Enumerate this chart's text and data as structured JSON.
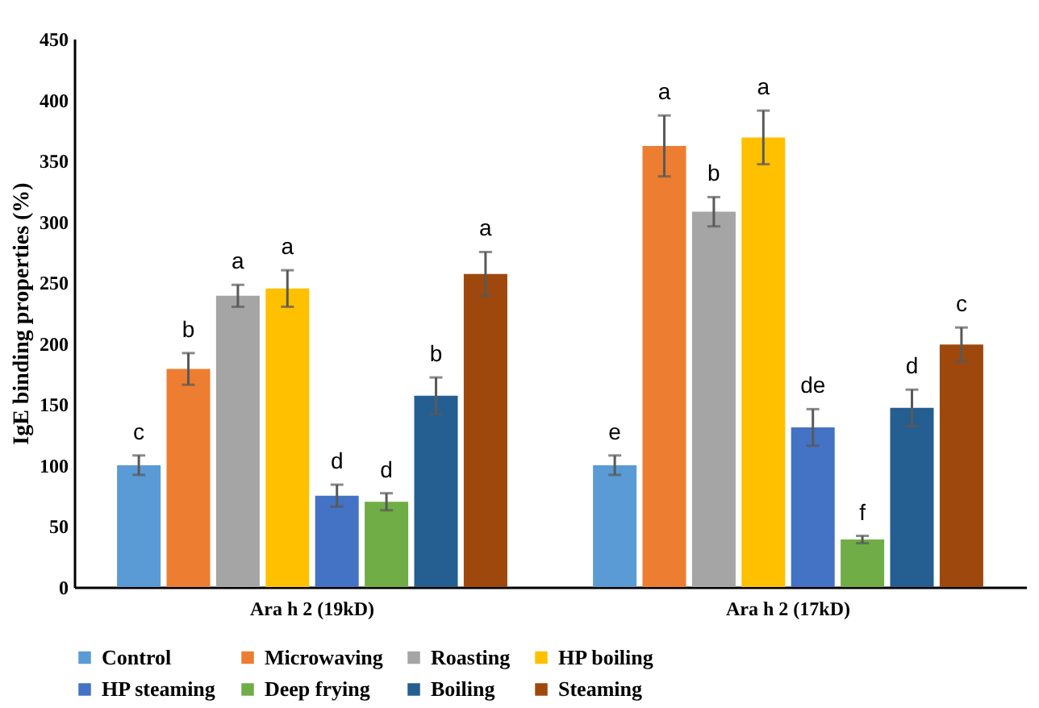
{
  "chart_data": {
    "type": "bar",
    "ylabel": "IgE binding properties (%)",
    "categories": [
      "Ara h 2 (19kD)",
      "Ara h 2 (17kD)"
    ],
    "ylim": [
      0,
      450
    ],
    "yticks": [
      0,
      50,
      100,
      150,
      200,
      250,
      300,
      350,
      400,
      450
    ],
    "grid": false,
    "legend": "bottom",
    "series": [
      {
        "name": "Control",
        "color": "#5b9bd5",
        "values": [
          100,
          100
        ],
        "errors": [
          8,
          8
        ],
        "value_labels": [
          "c",
          "e"
        ]
      },
      {
        "name": "Microwaving",
        "color": "#ed7d31",
        "values": [
          179,
          362
        ],
        "errors": [
          13,
          25
        ],
        "value_labels": [
          "b",
          "a"
        ]
      },
      {
        "name": "Roasting",
        "color": "#a5a5a5",
        "values": [
          239,
          308
        ],
        "errors": [
          9,
          12
        ],
        "value_labels": [
          "a",
          "b"
        ]
      },
      {
        "name": "HP boiling",
        "color": "#ffc000",
        "values": [
          245,
          369
        ],
        "errors": [
          15,
          22
        ],
        "value_labels": [
          "a",
          "a"
        ]
      },
      {
        "name": "HP steaming",
        "color": "#4472c4",
        "values": [
          75,
          131
        ],
        "errors": [
          9,
          15
        ],
        "value_labels": [
          "d",
          "de"
        ]
      },
      {
        "name": "Deep frying",
        "color": "#70ad47",
        "values": [
          70,
          39
        ],
        "errors": [
          7,
          3
        ],
        "value_labels": [
          "d",
          "f"
        ]
      },
      {
        "name": "Boiling",
        "color": "#255e91",
        "values": [
          157,
          147
        ],
        "errors": [
          15,
          15
        ],
        "value_labels": [
          "b",
          "d"
        ]
      },
      {
        "name": "Steaming",
        "color": "#9e480e",
        "values": [
          257,
          199
        ],
        "errors": [
          18,
          14
        ],
        "value_labels": [
          "a",
          "c"
        ]
      }
    ]
  }
}
